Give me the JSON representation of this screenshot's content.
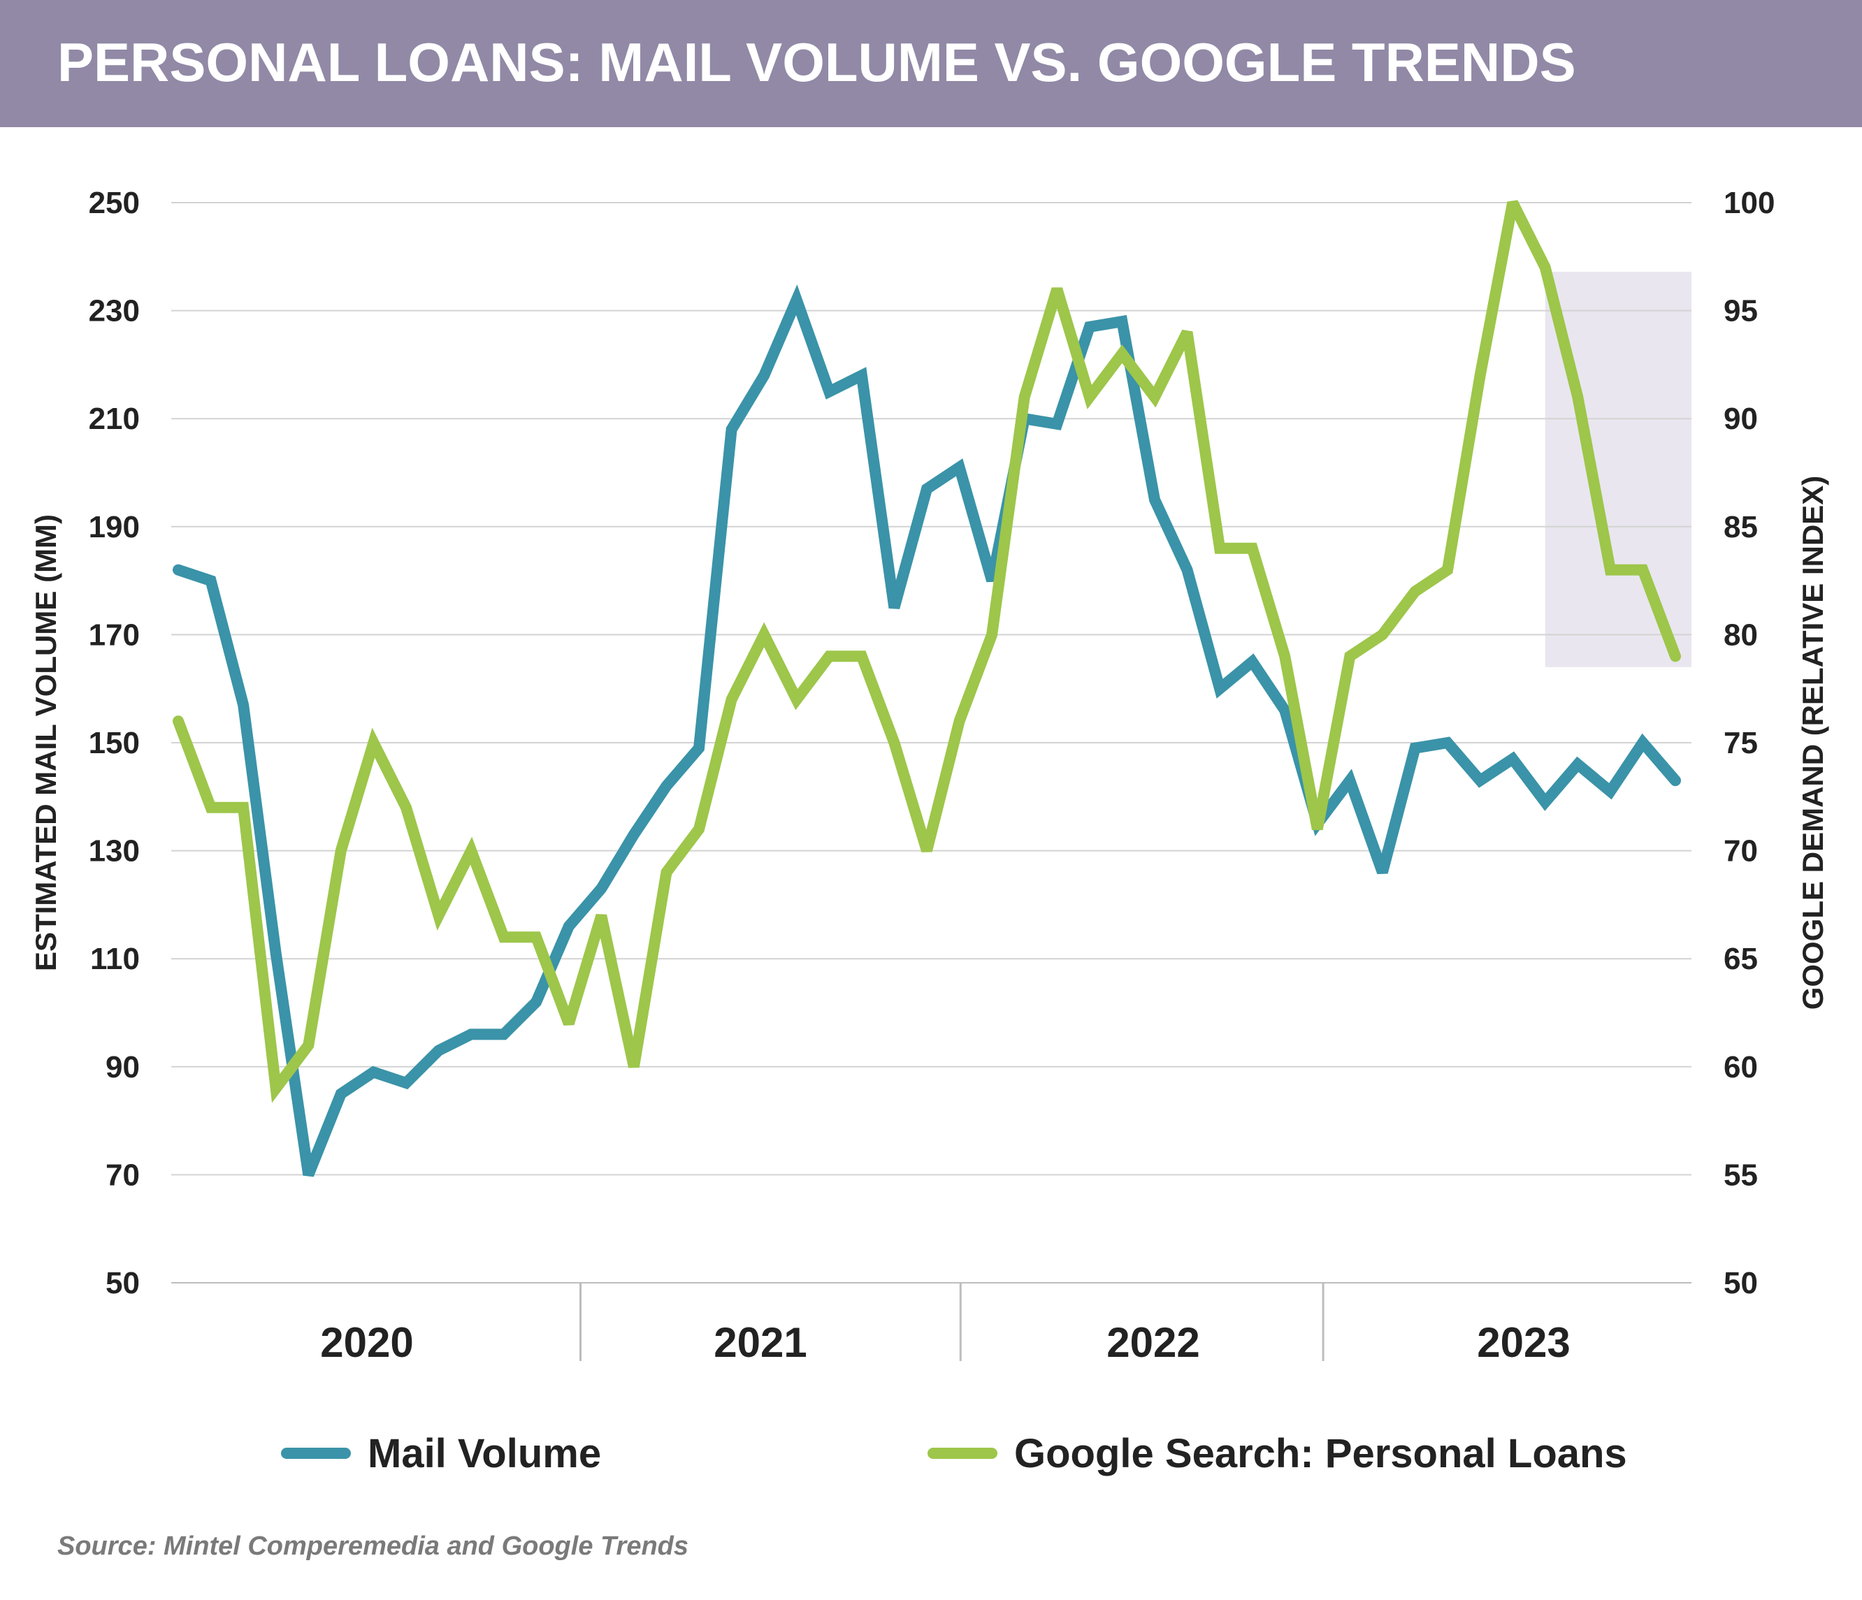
{
  "header": {
    "title": "PERSONAL LOANS: MAIL VOLUME VS. GOOGLE TRENDS"
  },
  "source": "Source: Mintel Comperemedia and Google Trends",
  "colors": {
    "header_bg": "#9189a6",
    "mail_volume": "#3a93a8",
    "google_search": "#9dc64a",
    "highlight": "#e9e6ef",
    "grid": "#d3d3d3"
  },
  "chart_data": {
    "type": "line",
    "title": "PERSONAL LOANS: MAIL VOLUME VS. GOOGLE TRENDS",
    "ylabel_left": "ESTIMATED MAIL VOLUME (MM)",
    "ylabel_right": "GOOGLE DEMAND (RELATIVE INDEX)",
    "ylim_left": [
      50,
      250
    ],
    "ylim_right": [
      50,
      100
    ],
    "yticks_left": [
      "50",
      "70",
      "90",
      "110",
      "130",
      "150",
      "170",
      "190",
      "210",
      "230",
      "250"
    ],
    "yticks_right": [
      "50",
      "55",
      "60",
      "65",
      "70",
      "75",
      "80",
      "85",
      "90",
      "95",
      "100"
    ],
    "year_labels": [
      "2020",
      "2021",
      "2022",
      "2023"
    ],
    "grid": "horizontal",
    "legend_position": "bottom",
    "highlight_region": {
      "x_start": 43,
      "x_end": 46.5,
      "y_right_start": 78.5,
      "y_right_end": 96.8
    },
    "x": [
      1,
      2,
      3,
      4,
      5,
      6,
      7,
      8,
      9,
      10,
      11,
      12,
      13,
      14,
      15,
      16,
      17,
      18,
      19,
      20,
      21,
      22,
      23,
      24,
      25,
      26,
      27,
      28,
      29,
      30,
      31,
      32,
      33,
      34,
      35,
      36,
      37,
      38,
      39,
      40,
      41,
      42,
      43,
      44,
      45,
      46,
      47
    ],
    "series": [
      {
        "name": "Mail Volume",
        "axis": "left",
        "values": [
          182,
          180,
          157,
          111,
          70,
          85,
          89,
          87,
          93,
          96,
          96,
          102,
          116,
          123,
          133,
          142,
          149,
          208,
          218,
          232,
          215,
          218,
          175,
          197,
          201,
          180,
          210,
          209,
          227,
          228,
          195,
          182,
          160,
          165,
          156,
          135,
          143,
          126,
          149,
          150,
          143,
          147,
          139,
          146,
          141,
          150,
          143
        ]
      },
      {
        "name": "Google Search: Personal Loans",
        "axis": "right",
        "values": [
          76,
          72,
          72,
          59,
          61,
          70,
          75,
          72,
          67,
          70,
          66,
          66,
          62,
          67,
          60,
          69,
          71,
          77,
          80,
          77,
          79,
          79,
          75,
          70,
          76,
          80,
          91,
          96,
          91,
          93,
          91,
          94,
          84,
          84,
          79,
          71,
          79,
          80,
          82,
          83,
          92,
          100,
          97,
          91,
          83,
          83,
          79
        ]
      }
    ]
  }
}
